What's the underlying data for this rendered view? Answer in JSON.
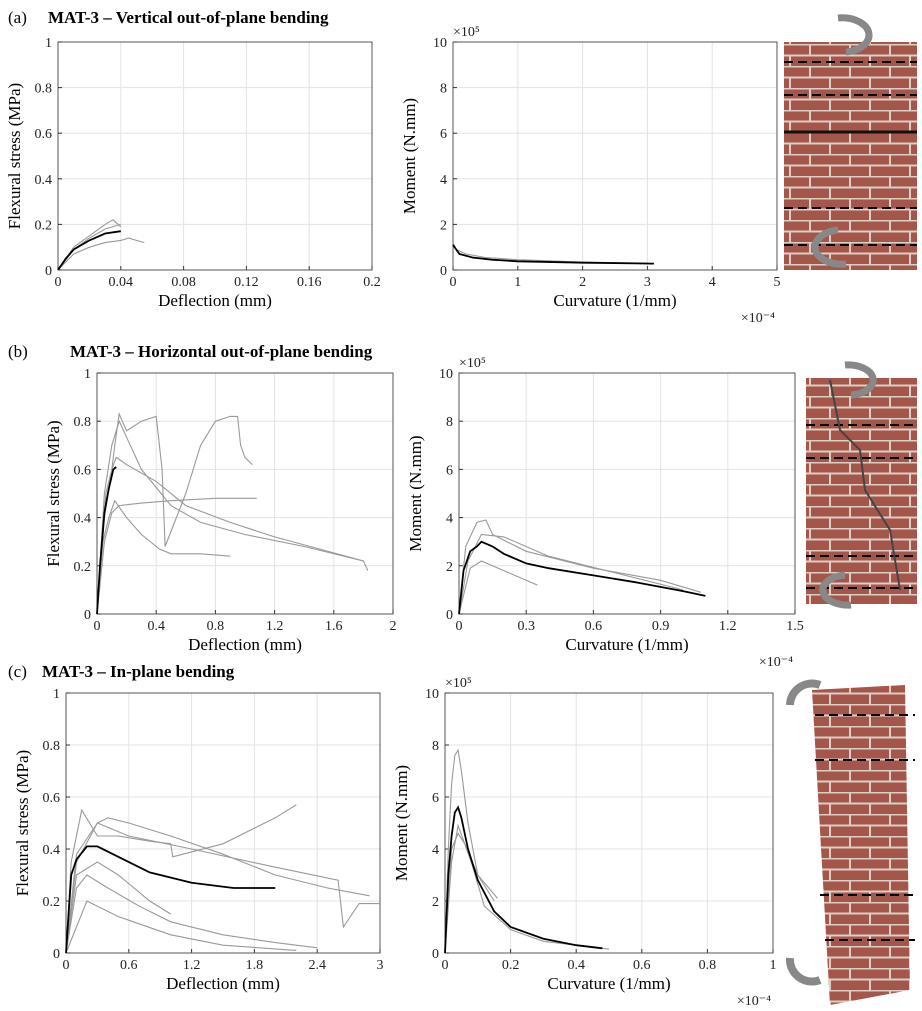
{
  "panels": [
    {
      "label": "(a)",
      "title": "MAT-3 – Vertical out-of-plane bending"
    },
    {
      "label": "(b)",
      "title": "MAT-3 – Horizontal out-of-plane bending"
    },
    {
      "label": "(c)",
      "title": "MAT-3 – In-plane bending"
    }
  ],
  "chart_data": [
    {
      "type": "line",
      "x_label": "Deflection (mm)",
      "y_label": "Flexural stress (MPa)",
      "xlim": [
        0,
        0.2
      ],
      "ylim": [
        0,
        1
      ],
      "xticks": [
        0,
        0.04,
        0.08,
        0.12,
        0.16,
        0.2
      ],
      "yticks": [
        0,
        0.2,
        0.4,
        0.6,
        0.8,
        1
      ],
      "grid": true,
      "series": [
        {
          "color": "#999999",
          "x": [
            0,
            0.005,
            0.01,
            0.02,
            0.03,
            0.035,
            0.04
          ],
          "values": [
            0,
            0.05,
            0.1,
            0.15,
            0.2,
            0.22,
            0.19
          ]
        },
        {
          "color": "#999999",
          "x": [
            0,
            0.01,
            0.02,
            0.03,
            0.04,
            0.045,
            0.05,
            0.055
          ],
          "values": [
            0,
            0.07,
            0.1,
            0.12,
            0.13,
            0.14,
            0.13,
            0.12
          ]
        },
        {
          "color": "#999999",
          "x": [
            0,
            0.01,
            0.02,
            0.03,
            0.04
          ],
          "values": [
            0,
            0.09,
            0.14,
            0.18,
            0.2
          ]
        },
        {
          "color": "#000000",
          "x": [
            0,
            0.005,
            0.01,
            0.02,
            0.03,
            0.04
          ],
          "values": [
            0,
            0.05,
            0.09,
            0.13,
            0.16,
            0.17
          ]
        }
      ]
    },
    {
      "type": "line",
      "x_label": "Curvature (1/mm)",
      "y_label": "Moment (N.mm)",
      "y_multiplier": "×10⁵",
      "x_multiplier": "×10⁻⁴",
      "xlim": [
        0,
        5
      ],
      "ylim": [
        0,
        10
      ],
      "xticks": [
        0,
        1,
        2,
        3,
        4,
        5
      ],
      "yticks": [
        0,
        2,
        4,
        6,
        8,
        10
      ],
      "grid": true,
      "series": [
        {
          "color": "#999999",
          "x": [
            0,
            0.05,
            0.2,
            0.5,
            1,
            2,
            3
          ],
          "values": [
            1.2,
            0.9,
            0.7,
            0.55,
            0.45,
            0.35,
            0.3
          ]
        },
        {
          "color": "#000000",
          "x": [
            0,
            0.05,
            0.1,
            0.3,
            0.6,
            1,
            2,
            3.1
          ],
          "values": [
            1.1,
            0.9,
            0.7,
            0.55,
            0.45,
            0.38,
            0.32,
            0.28
          ]
        }
      ]
    },
    {
      "type": "line",
      "x_label": "Deflection (mm)",
      "y_label": "Flexural stress (MPa)",
      "xlim": [
        0,
        2
      ],
      "ylim": [
        0,
        1
      ],
      "xticks": [
        0,
        0.4,
        0.8,
        1.2,
        1.6,
        2
      ],
      "yticks": [
        0,
        0.2,
        0.4,
        0.6,
        0.8,
        1
      ],
      "grid": true,
      "series": [
        {
          "color": "#999999",
          "x": [
            0,
            0.03,
            0.06,
            0.1,
            0.13,
            0.2,
            0.4,
            0.6,
            0.9,
            1.2,
            1.5,
            1.8,
            1.83
          ],
          "values": [
            0,
            0.3,
            0.5,
            0.6,
            0.65,
            0.62,
            0.55,
            0.45,
            0.38,
            0.32,
            0.27,
            0.22,
            0.18
          ]
        },
        {
          "color": "#999999",
          "x": [
            0,
            0.05,
            0.1,
            0.12,
            0.15,
            0.2,
            0.3,
            0.4,
            0.44,
            0.46,
            0.6,
            0.7,
            0.8,
            0.9,
            0.95,
            0.97,
            1.0,
            1.05
          ],
          "values": [
            0,
            0.4,
            0.6,
            0.7,
            0.83,
            0.76,
            0.8,
            0.82,
            0.6,
            0.28,
            0.5,
            0.7,
            0.8,
            0.82,
            0.82,
            0.7,
            0.65,
            0.62
          ]
        },
        {
          "color": "#999999",
          "x": [
            0,
            0.05,
            0.1,
            0.15,
            0.3,
            0.5,
            0.8,
            1.08
          ],
          "values": [
            0,
            0.3,
            0.42,
            0.45,
            0.46,
            0.47,
            0.48,
            0.48
          ]
        },
        {
          "color": "#999999",
          "x": [
            0,
            0.04,
            0.08,
            0.12,
            0.2,
            0.3,
            0.42,
            0.5,
            0.7,
            0.9
          ],
          "values": [
            0,
            0.3,
            0.4,
            0.47,
            0.4,
            0.33,
            0.27,
            0.25,
            0.25,
            0.24
          ]
        },
        {
          "color": "#999999",
          "x": [
            0,
            0.05,
            0.1,
            0.15,
            0.3,
            0.5,
            0.7,
            1.0,
            1.4,
            1.8
          ],
          "values": [
            0,
            0.5,
            0.7,
            0.8,
            0.6,
            0.45,
            0.38,
            0.33,
            0.28,
            0.22
          ]
        },
        {
          "color": "#000000",
          "x": [
            0,
            0.02,
            0.05,
            0.08,
            0.11,
            0.13
          ],
          "values": [
            0,
            0.2,
            0.42,
            0.52,
            0.6,
            0.61
          ]
        }
      ]
    },
    {
      "type": "line",
      "x_label": "Curvature (1/mm)",
      "y_label": "Moment (N.mm)",
      "y_multiplier": "×10⁵",
      "x_multiplier": "×10⁻⁴",
      "xlim": [
        0,
        1.5
      ],
      "ylim": [
        0,
        10
      ],
      "xticks": [
        0,
        0.3,
        0.6,
        0.9,
        1.2,
        1.5
      ],
      "yticks": [
        0,
        2,
        4,
        6,
        8,
        10
      ],
      "grid": true,
      "series": [
        {
          "color": "#999999",
          "x": [
            0,
            0.03,
            0.08,
            0.12,
            0.15,
            0.3,
            0.6,
            0.9,
            1.08
          ],
          "values": [
            0,
            2.8,
            3.8,
            3.9,
            3.3,
            2.6,
            1.9,
            1.4,
            0.9
          ]
        },
        {
          "color": "#999999",
          "x": [
            0,
            0.05,
            0.1,
            0.2,
            0.3,
            0.35
          ],
          "values": [
            0,
            1.9,
            2.2,
            1.8,
            1.4,
            1.2
          ]
        },
        {
          "color": "#999999",
          "x": [
            0,
            0.04,
            0.1,
            0.2,
            0.4,
            0.7,
            1.0
          ],
          "values": [
            0,
            2.2,
            3.3,
            3.2,
            2.4,
            1.7,
            1.0
          ]
        },
        {
          "color": "#000000",
          "x": [
            0,
            0.02,
            0.05,
            0.08,
            0.1,
            0.15,
            0.2,
            0.3,
            0.4,
            0.6,
            0.8,
            1.0,
            1.1
          ],
          "values": [
            0,
            1.8,
            2.6,
            2.8,
            3.0,
            2.8,
            2.5,
            2.1,
            1.9,
            1.6,
            1.3,
            0.95,
            0.75
          ]
        }
      ]
    },
    {
      "type": "line",
      "x_label": "Deflection (mm)",
      "y_label": "Flexural stress (MPa)",
      "xlim": [
        0,
        3
      ],
      "ylim": [
        0,
        1
      ],
      "xticks": [
        0,
        0.6,
        1.2,
        1.8,
        2.4,
        3
      ],
      "yticks": [
        0,
        0.2,
        0.4,
        0.6,
        0.8,
        1
      ],
      "grid": true,
      "series": [
        {
          "color": "#999999",
          "x": [
            0,
            0.05,
            0.15,
            0.3,
            0.5,
            0.8,
            1.0,
            1.02,
            1.5,
            2.0,
            2.2
          ],
          "values": [
            0,
            0.35,
            0.55,
            0.45,
            0.45,
            0.43,
            0.42,
            0.37,
            0.42,
            0.52,
            0.57
          ]
        },
        {
          "color": "#999999",
          "x": [
            0,
            0.1,
            0.3,
            0.4,
            0.6,
            1.0,
            1.5,
            2.0,
            2.5,
            2.9
          ],
          "values": [
            0,
            0.38,
            0.5,
            0.52,
            0.5,
            0.45,
            0.38,
            0.3,
            0.25,
            0.22
          ]
        },
        {
          "color": "#999999",
          "x": [
            0,
            0.1,
            0.2,
            0.4,
            0.7,
            1.0,
            1.5,
            2.0,
            2.2,
            2.4
          ],
          "values": [
            0,
            0.25,
            0.3,
            0.25,
            0.18,
            0.12,
            0.07,
            0.04,
            0.03,
            0.02
          ]
        },
        {
          "color": "#999999",
          "x": [
            0,
            0.1,
            0.3,
            0.5,
            0.8,
            1.0
          ],
          "values": [
            0,
            0.3,
            0.35,
            0.3,
            0.2,
            0.15
          ]
        },
        {
          "color": "#999999",
          "x": [
            0,
            0.1,
            0.3,
            0.6,
            1.2,
            2.0,
            2.6,
            2.65,
            2.8,
            3.0
          ],
          "values": [
            0,
            0.35,
            0.5,
            0.45,
            0.4,
            0.33,
            0.28,
            0.1,
            0.19,
            0.19
          ]
        },
        {
          "color": "#999999",
          "x": [
            0,
            0.2,
            0.5,
            1.0,
            1.5,
            2.2
          ],
          "values": [
            0,
            0.2,
            0.14,
            0.07,
            0.03,
            0.01
          ]
        },
        {
          "color": "#000000",
          "x": [
            0,
            0.05,
            0.1,
            0.2,
            0.3,
            0.5,
            0.8,
            1.2,
            1.6,
            2.0
          ],
          "values": [
            0,
            0.3,
            0.36,
            0.41,
            0.41,
            0.37,
            0.31,
            0.27,
            0.25,
            0.25
          ]
        }
      ]
    },
    {
      "type": "line",
      "x_label": "Curvature (1/mm)",
      "y_label": "Moment (N.mm)",
      "y_multiplier": "×10⁵",
      "x_multiplier": "×10⁻⁴",
      "xlim": [
        0,
        1
      ],
      "ylim": [
        0,
        10
      ],
      "xticks": [
        0,
        0.2,
        0.4,
        0.6,
        0.8,
        1
      ],
      "yticks": [
        0,
        2,
        4,
        6,
        8,
        10
      ],
      "grid": true,
      "series": [
        {
          "color": "#999999",
          "x": [
            0,
            0.01,
            0.02,
            0.03,
            0.04,
            0.05,
            0.07,
            0.1,
            0.15
          ],
          "values": [
            0,
            4,
            6.5,
            7.6,
            7.8,
            7,
            5,
            3,
            2
          ]
        },
        {
          "color": "#999999",
          "x": [
            0,
            0.02,
            0.04,
            0.06,
            0.1,
            0.16
          ],
          "values": [
            0,
            4,
            4.6,
            4.2,
            3,
            2.1
          ]
        },
        {
          "color": "#999999",
          "x": [
            0,
            0.02,
            0.04,
            0.08,
            0.12,
            0.2,
            0.3,
            0.5
          ],
          "values": [
            0,
            3.5,
            4.9,
            3.5,
            1.8,
            0.9,
            0.45,
            0.15
          ]
        },
        {
          "color": "#000000",
          "x": [
            0,
            0.01,
            0.02,
            0.03,
            0.04,
            0.05,
            0.07,
            0.1,
            0.15,
            0.2,
            0.3,
            0.4,
            0.48
          ],
          "values": [
            0,
            3,
            4.5,
            5.4,
            5.6,
            5.2,
            4,
            2.8,
            1.6,
            1.0,
            0.55,
            0.3,
            0.18
          ]
        }
      ]
    }
  ]
}
